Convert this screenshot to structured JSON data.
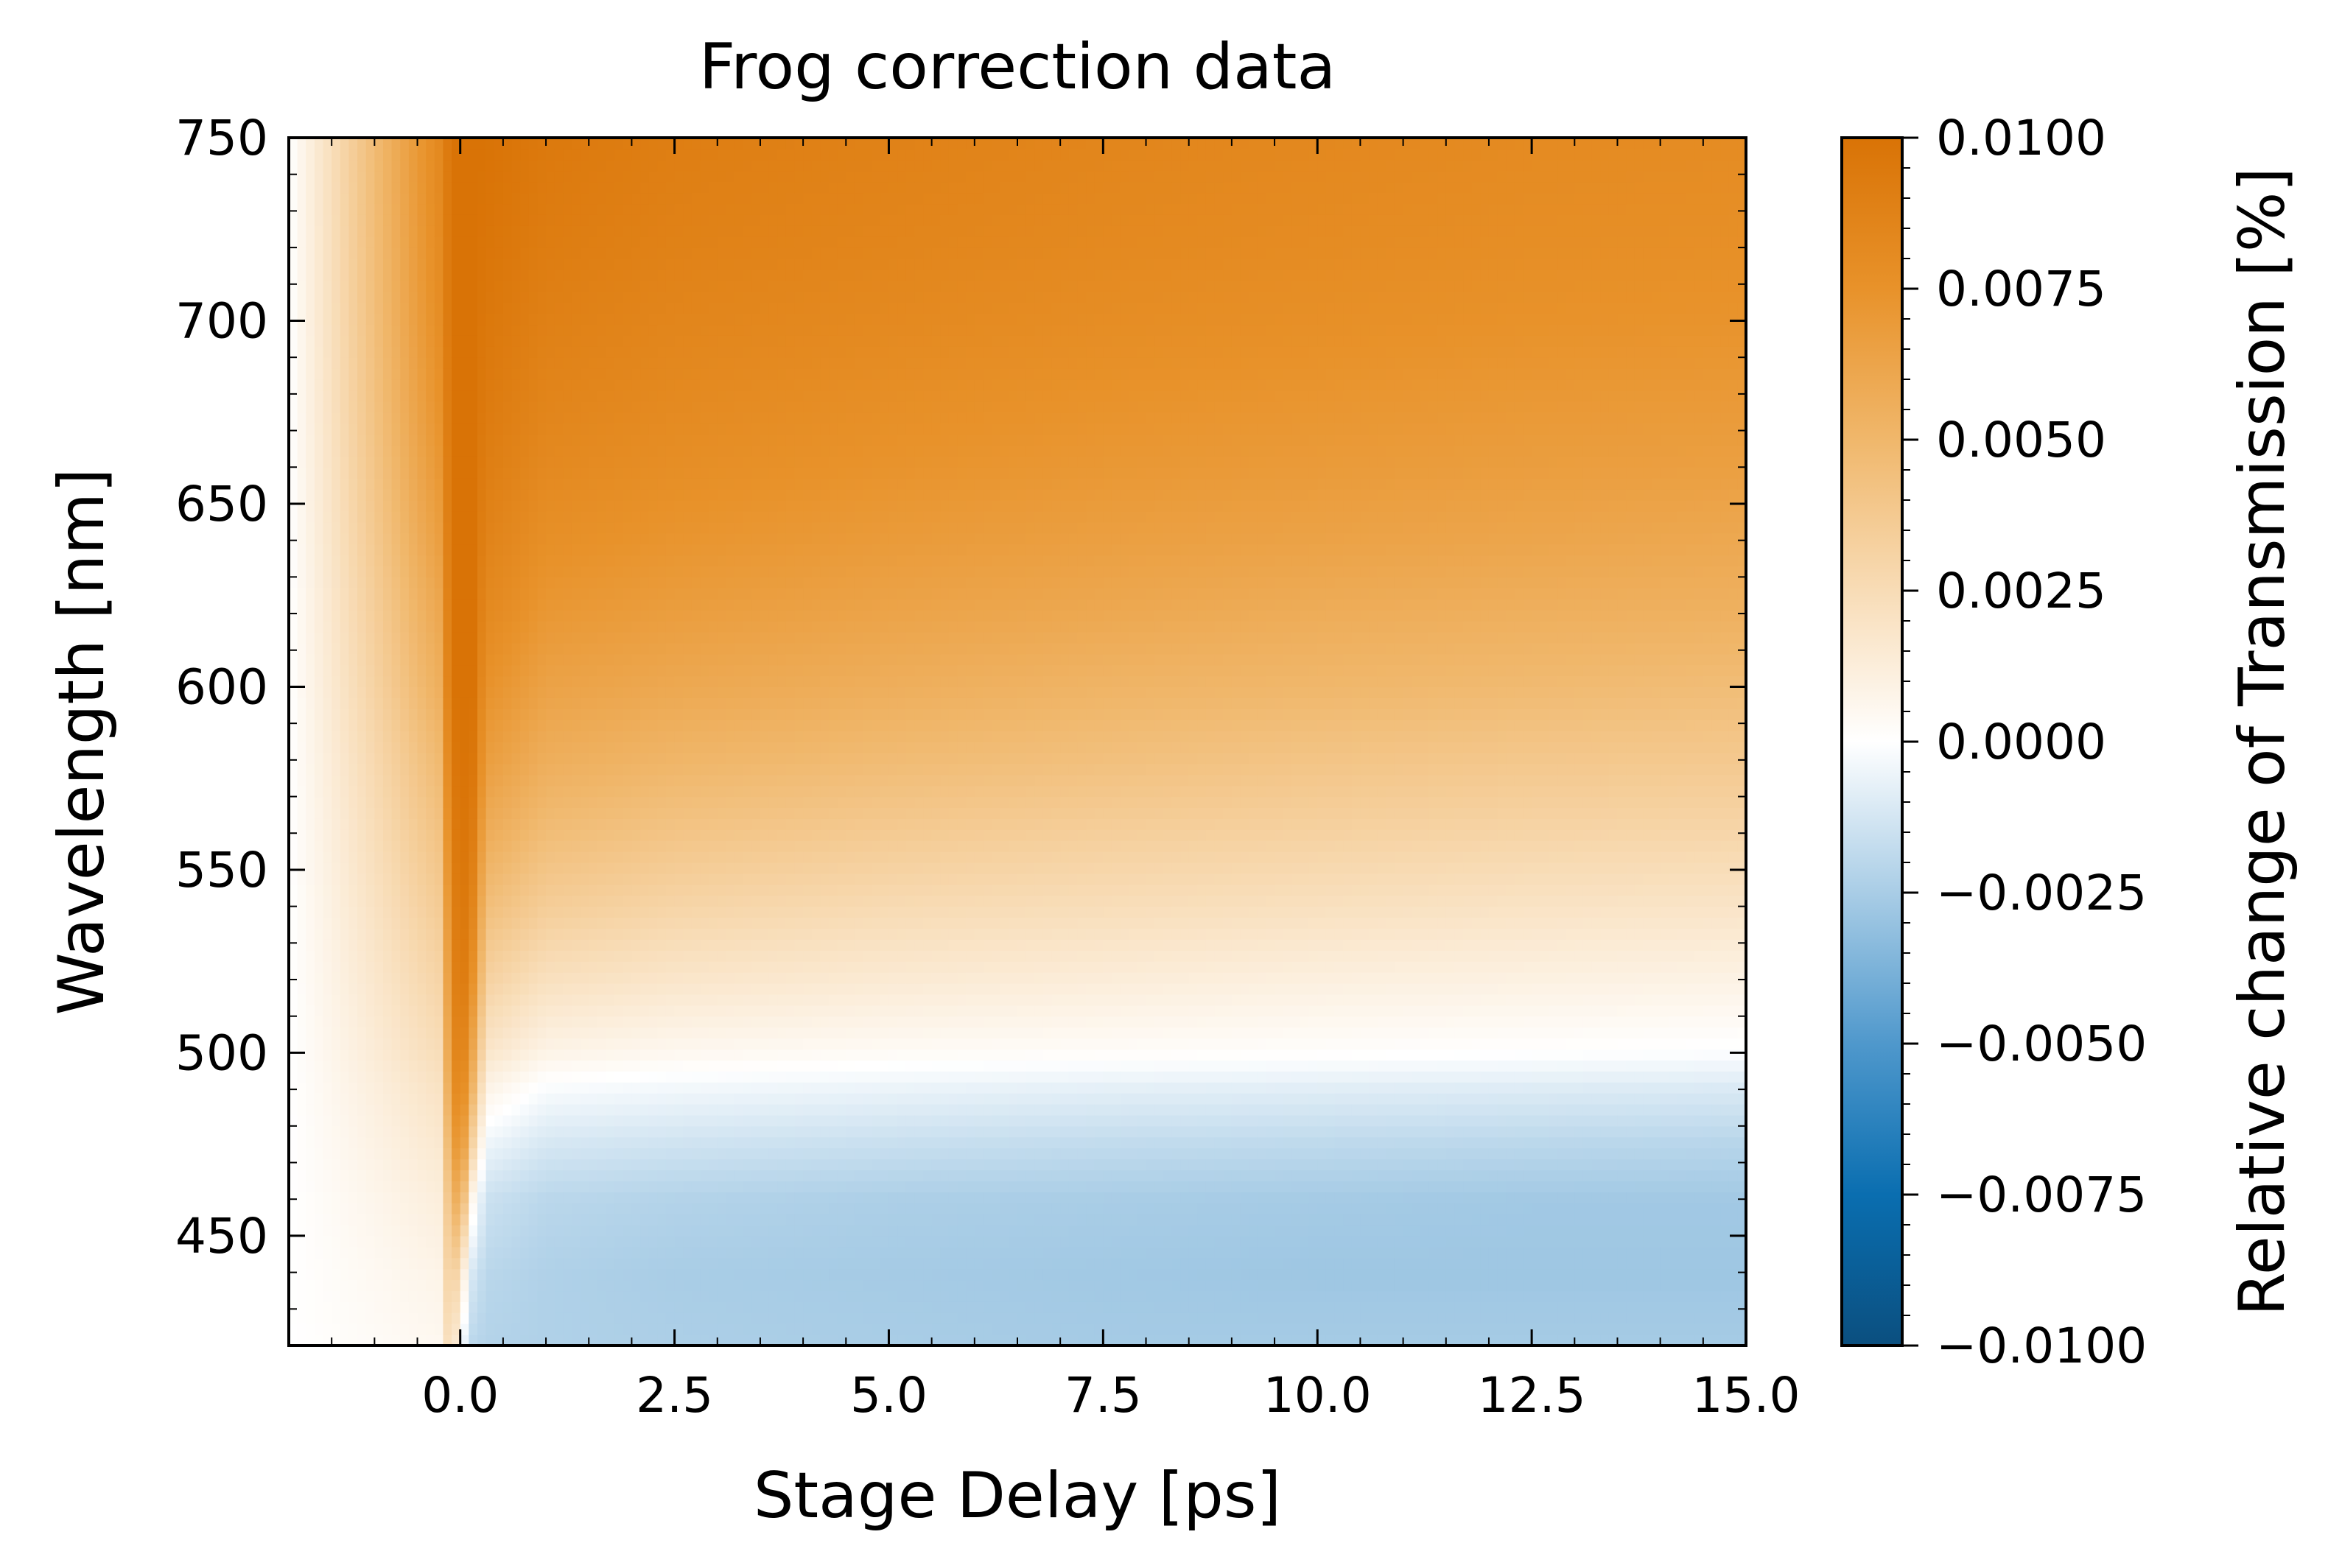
{
  "chart_data": {
    "type": "heatmap",
    "title": "Frog correction data",
    "xlabel": "Stage Delay [ps]",
    "ylabel": "Wavelength [nm]",
    "xlim": [
      -2.0,
      15.0
    ],
    "ylim": [
      420,
      750
    ],
    "x_ticks": [
      0.0,
      2.5,
      5.0,
      7.5,
      10.0,
      12.5,
      15.0
    ],
    "x_tick_labels": [
      "0.0",
      "2.5",
      "5.0",
      "7.5",
      "10.0",
      "12.5",
      "15.0"
    ],
    "y_ticks": [
      450,
      500,
      550,
      600,
      650,
      700,
      750
    ],
    "y_tick_labels": [
      "450",
      "500",
      "550",
      "600",
      "650",
      "700",
      "750"
    ],
    "colorbar": {
      "label": "Relative change of Transmission [%]",
      "vmin": -0.01,
      "vmax": 0.01,
      "ticks": [
        0.01,
        0.0075,
        0.005,
        0.0025,
        0.0,
        -0.0025,
        -0.005,
        -0.0075,
        -0.01
      ],
      "tick_labels": [
        "0.0100",
        "0.0075",
        "0.0050",
        "0.0025",
        "0.0000",
        "−0.0025",
        "−0.0050",
        "−0.0075",
        "−0.0100"
      ],
      "colormap": [
        "#0b4f7f",
        "#0a6eb0",
        "#4f98cc",
        "#a9cde6",
        "#ffffff",
        "#f8dcb6",
        "#f0b76b",
        "#e8922a",
        "#d97306"
      ]
    },
    "signal_profile": {
      "delay_ps": [
        -2.0,
        -0.25,
        -0.1,
        0.0,
        0.15,
        0.3,
        1.0,
        2.5,
        5.0,
        7.5,
        10.0,
        12.5,
        15.0
      ],
      "wavelength_nm": [
        420,
        440,
        460,
        475,
        490,
        500,
        520,
        540,
        560,
        580,
        600,
        620,
        640,
        660,
        680,
        700,
        720,
        750
      ],
      "values": [
        [
          0.0,
          0.0,
          0.0,
          0.0,
          0.0,
          0.0,
          0.0,
          0.0,
          0.0,
          0.0,
          0.0,
          0.0,
          0.0,
          0.0,
          0.0,
          0.0,
          0.0,
          0.0
        ],
        [
          0.0005,
          0.0008,
          0.0012,
          0.0016,
          0.002,
          0.0024,
          0.003,
          0.0036,
          0.0042,
          0.0048,
          0.0055,
          0.006,
          0.0066,
          0.0071,
          0.0075,
          0.0078,
          0.008,
          0.0082
        ],
        [
          0.003,
          0.004,
          0.005,
          0.006,
          0.007,
          0.0075,
          0.008,
          0.0085,
          0.009,
          0.0095,
          0.01,
          0.01,
          0.01,
          0.01,
          0.01,
          0.01,
          0.01,
          0.01
        ],
        [
          0.0,
          0.002,
          0.006,
          0.008,
          0.009,
          0.0095,
          0.01,
          0.01,
          0.01,
          0.01,
          0.01,
          0.01,
          0.01,
          0.01,
          0.01,
          0.01,
          0.01,
          0.01
        ],
        [
          -0.002,
          -0.0012,
          0.0005,
          0.003,
          0.005,
          0.006,
          0.0075,
          0.0085,
          0.0092,
          0.0097,
          0.01,
          0.01,
          0.01,
          0.01,
          0.01,
          0.01,
          0.01,
          0.01
        ],
        [
          -0.0022,
          -0.002,
          -0.0015,
          -0.0005,
          0.0008,
          0.0018,
          0.0032,
          0.0045,
          0.0057,
          0.0067,
          0.0075,
          0.0082,
          0.0087,
          0.0091,
          0.0094,
          0.0096,
          0.0098,
          0.01
        ],
        [
          -0.0023,
          -0.0023,
          -0.002,
          -0.0012,
          -0.0002,
          0.0008,
          0.0022,
          0.0035,
          0.0046,
          0.0056,
          0.0064,
          0.0071,
          0.0077,
          0.0082,
          0.0086,
          0.0089,
          0.0092,
          0.0095
        ],
        [
          -0.0024,
          -0.0025,
          -0.0022,
          -0.0014,
          -0.0004,
          0.0005,
          0.0018,
          0.003,
          0.0041,
          0.0051,
          0.006,
          0.0067,
          0.0073,
          0.0078,
          0.0082,
          0.0085,
          0.0088,
          0.0091
        ],
        [
          -0.0025,
          -0.0026,
          -0.0024,
          -0.0016,
          -0.0006,
          0.0003,
          0.0015,
          0.0026,
          0.0037,
          0.0047,
          0.0056,
          0.0063,
          0.0069,
          0.0074,
          0.0078,
          0.0082,
          0.0085,
          0.0088
        ],
        [
          -0.0026,
          -0.0027,
          -0.0025,
          -0.0018,
          -0.0008,
          0.0002,
          0.0013,
          0.0024,
          0.0034,
          0.0044,
          0.0052,
          0.006,
          0.0066,
          0.0071,
          0.0075,
          0.0079,
          0.0082,
          0.0085
        ],
        [
          -0.0026,
          -0.0028,
          -0.0026,
          -0.0019,
          -0.0009,
          0.0001,
          0.0011,
          0.0022,
          0.0032,
          0.0041,
          0.005,
          0.0057,
          0.0064,
          0.0069,
          0.0073,
          0.0077,
          0.008,
          0.0083
        ],
        [
          -0.0026,
          -0.0028,
          -0.0027,
          -0.002,
          -0.001,
          0.0,
          0.001,
          0.002,
          0.003,
          0.0039,
          0.0048,
          0.0055,
          0.0062,
          0.0067,
          0.0071,
          0.0075,
          0.0078,
          0.0081
        ],
        [
          -0.0026,
          -0.0028,
          -0.0027,
          -0.0021,
          -0.0011,
          -0.0001,
          0.0009,
          0.0019,
          0.0029,
          0.0038,
          0.0046,
          0.0054,
          0.006,
          0.0066,
          0.007,
          0.0074,
          0.0077,
          0.008
        ]
      ]
    }
  }
}
